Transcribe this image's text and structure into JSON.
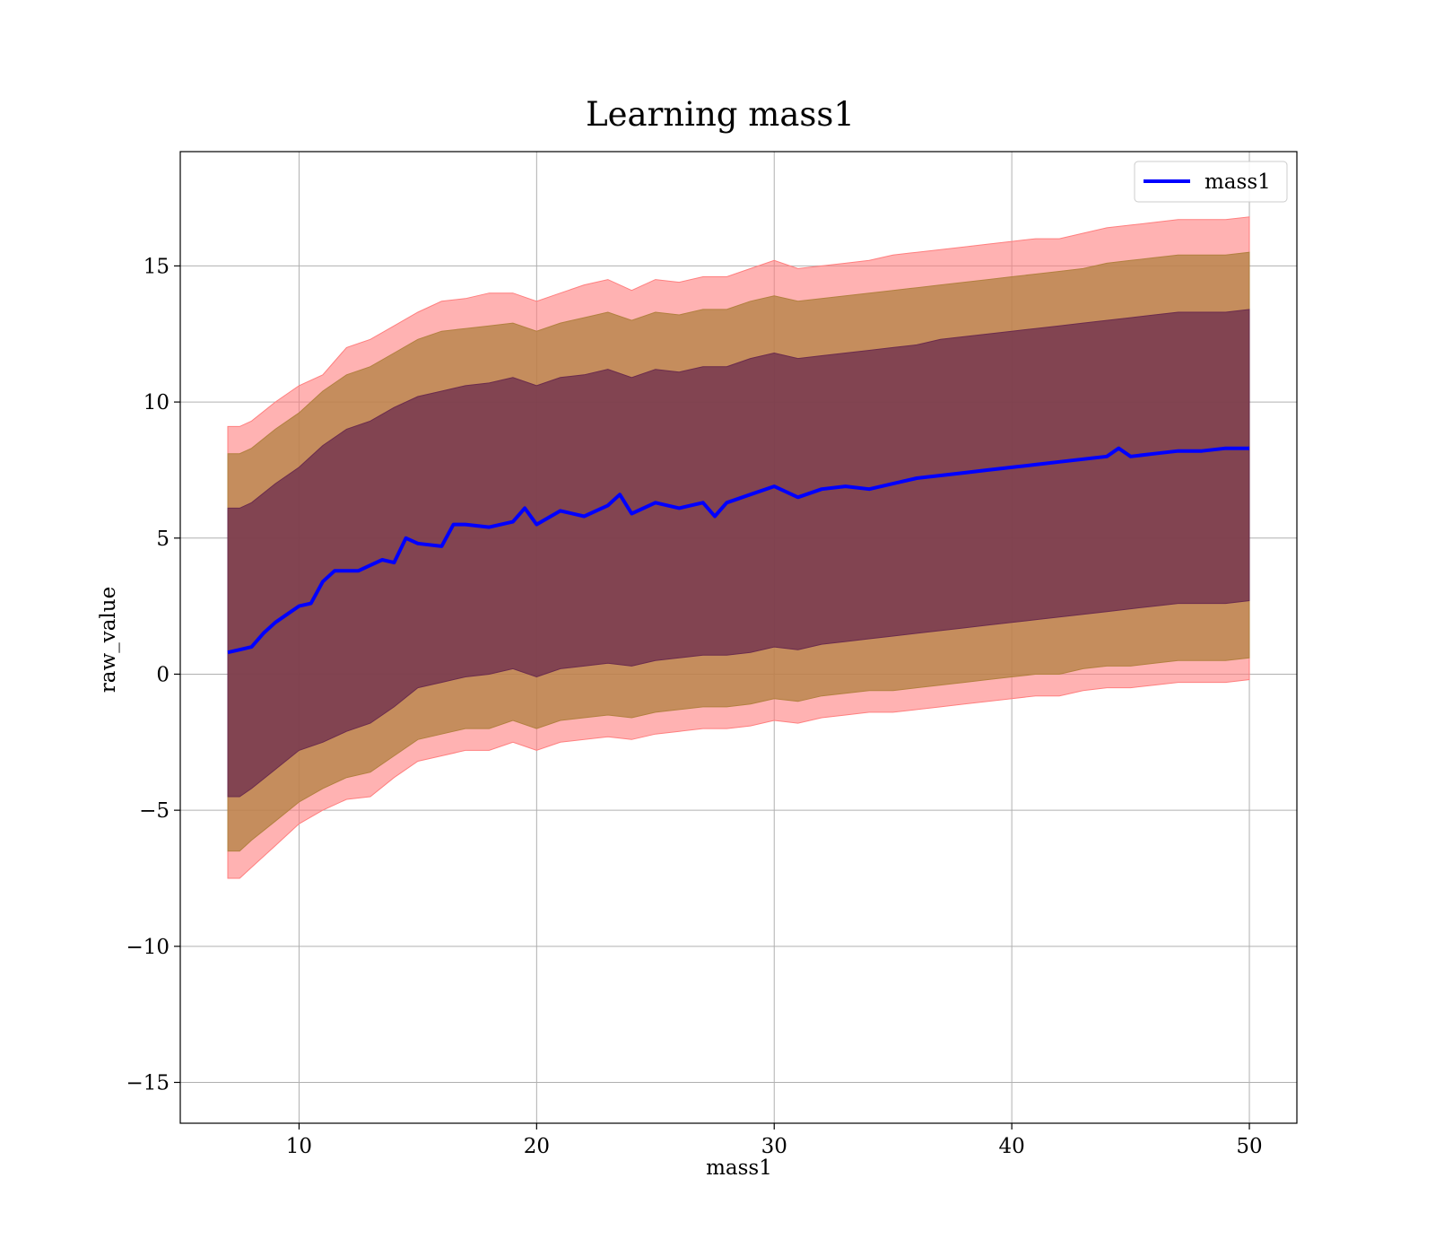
{
  "chart_data": {
    "type": "line",
    "title": "Learning mass1",
    "xlabel": "mass1",
    "ylabel": "raw_value",
    "xlim": [
      5,
      52
    ],
    "ylim": [
      -16.5,
      19.2
    ],
    "xticks": [
      10,
      20,
      30,
      40,
      50
    ],
    "yticks": [
      -15,
      -10,
      -5,
      0,
      5,
      10,
      15
    ],
    "xtick_labels": [
      "10",
      "20",
      "30",
      "40",
      "50"
    ],
    "ytick_labels": [
      "−15",
      "−10",
      "−5",
      "0",
      "5",
      "10",
      "15"
    ],
    "grid": true,
    "legend_position": "top-right",
    "series": [
      {
        "name": "mass1",
        "color": "#0000ff",
        "x": [
          7,
          7.5,
          8,
          8.5,
          9,
          9.5,
          10,
          10.5,
          11,
          11.5,
          12,
          12.5,
          13,
          13.5,
          14,
          14.5,
          15,
          16,
          16.5,
          17,
          18,
          19,
          19.5,
          20,
          21,
          22,
          23,
          23.5,
          24,
          25,
          26,
          27,
          27.5,
          28,
          29,
          30,
          31,
          32,
          33,
          34,
          35,
          36,
          37,
          38,
          39,
          40,
          41,
          42,
          43,
          44,
          44.5,
          45,
          46,
          47,
          48,
          49,
          50
        ],
        "values": [
          0.8,
          0.9,
          1.0,
          1.5,
          1.9,
          2.2,
          2.5,
          2.6,
          3.4,
          3.8,
          3.8,
          3.8,
          4.0,
          4.2,
          4.1,
          5.0,
          4.8,
          4.7,
          5.5,
          5.5,
          5.4,
          5.6,
          6.1,
          5.5,
          6.0,
          5.8,
          6.2,
          6.6,
          5.9,
          6.3,
          6.1,
          6.3,
          5.8,
          6.3,
          6.6,
          6.9,
          6.5,
          6.8,
          6.9,
          6.8,
          7.0,
          7.2,
          7.3,
          7.4,
          7.5,
          7.6,
          7.7,
          7.8,
          7.9,
          8.0,
          8.3,
          8.0,
          8.1,
          8.2,
          8.2,
          8.3,
          8.3
        ]
      }
    ],
    "bands": [
      {
        "color": "#ff7f7f",
        "x": [
          7,
          7.5,
          8,
          9,
          10,
          11,
          12,
          13,
          14,
          15,
          16,
          17,
          18,
          19,
          20,
          21,
          22,
          23,
          24,
          25,
          26,
          27,
          28,
          29,
          30,
          31,
          32,
          33,
          34,
          35,
          36,
          37,
          38,
          39,
          40,
          41,
          42,
          43,
          44,
          45,
          46,
          47,
          48,
          49,
          50
        ],
        "upper": [
          9.1,
          9.1,
          9.3,
          10.0,
          10.6,
          11.0,
          12.0,
          12.3,
          12.8,
          13.3,
          13.7,
          13.8,
          14.0,
          14.0,
          13.7,
          14.0,
          14.3,
          14.5,
          14.1,
          14.5,
          14.4,
          14.6,
          14.6,
          14.9,
          15.2,
          14.9,
          15.0,
          15.1,
          15.2,
          15.4,
          15.5,
          15.6,
          15.7,
          15.8,
          15.9,
          16.0,
          16.0,
          16.2,
          16.4,
          16.5,
          16.6,
          16.7,
          16.7,
          16.7,
          16.8
        ],
        "lower": [
          -7.5,
          -7.5,
          -7.1,
          -6.3,
          -5.5,
          -5.0,
          -4.6,
          -4.5,
          -3.8,
          -3.2,
          -3.0,
          -2.8,
          -2.8,
          -2.5,
          -2.8,
          -2.5,
          -2.4,
          -2.3,
          -2.4,
          -2.2,
          -2.1,
          -2.0,
          -2.0,
          -1.9,
          -1.7,
          -1.8,
          -1.6,
          -1.5,
          -1.4,
          -1.4,
          -1.3,
          -1.2,
          -1.1,
          -1.0,
          -0.9,
          -0.8,
          -0.8,
          -0.6,
          -0.5,
          -0.5,
          -0.4,
          -0.3,
          -0.3,
          -0.3,
          -0.2
        ]
      },
      {
        "color": "#b28040",
        "x": [
          7,
          7.5,
          8,
          9,
          10,
          11,
          12,
          13,
          14,
          15,
          16,
          17,
          18,
          19,
          20,
          21,
          22,
          23,
          24,
          25,
          26,
          27,
          28,
          29,
          30,
          31,
          32,
          33,
          34,
          35,
          36,
          37,
          38,
          39,
          40,
          41,
          42,
          43,
          44,
          45,
          46,
          47,
          48,
          49,
          50
        ],
        "upper": [
          8.1,
          8.1,
          8.3,
          9.0,
          9.6,
          10.4,
          11.0,
          11.3,
          11.8,
          12.3,
          12.6,
          12.7,
          12.8,
          12.9,
          12.6,
          12.9,
          13.1,
          13.3,
          13.0,
          13.3,
          13.2,
          13.4,
          13.4,
          13.7,
          13.9,
          13.7,
          13.8,
          13.9,
          14.0,
          14.1,
          14.2,
          14.3,
          14.4,
          14.5,
          14.6,
          14.7,
          14.8,
          14.9,
          15.1,
          15.2,
          15.3,
          15.4,
          15.4,
          15.4,
          15.5
        ],
        "lower": [
          -6.5,
          -6.5,
          -6.1,
          -5.4,
          -4.7,
          -4.2,
          -3.8,
          -3.6,
          -3.0,
          -2.4,
          -2.2,
          -2.0,
          -2.0,
          -1.7,
          -2.0,
          -1.7,
          -1.6,
          -1.5,
          -1.6,
          -1.4,
          -1.3,
          -1.2,
          -1.2,
          -1.1,
          -0.9,
          -1.0,
          -0.8,
          -0.7,
          -0.6,
          -0.6,
          -0.5,
          -0.4,
          -0.3,
          -0.2,
          -0.1,
          0.0,
          0.0,
          0.2,
          0.3,
          0.3,
          0.4,
          0.5,
          0.5,
          0.5,
          0.6
        ]
      },
      {
        "color": "#6b2c4d",
        "x": [
          7,
          7.5,
          8,
          9,
          10,
          11,
          12,
          13,
          14,
          15,
          16,
          17,
          18,
          19,
          20,
          21,
          22,
          23,
          24,
          25,
          26,
          27,
          28,
          29,
          30,
          31,
          32,
          33,
          34,
          35,
          36,
          37,
          38,
          39,
          40,
          41,
          42,
          43,
          44,
          45,
          46,
          47,
          48,
          49,
          50
        ],
        "upper": [
          6.1,
          6.1,
          6.3,
          7.0,
          7.6,
          8.4,
          9.0,
          9.3,
          9.8,
          10.2,
          10.4,
          10.6,
          10.7,
          10.9,
          10.6,
          10.9,
          11.0,
          11.2,
          10.9,
          11.2,
          11.1,
          11.3,
          11.3,
          11.6,
          11.8,
          11.6,
          11.7,
          11.8,
          11.9,
          12.0,
          12.1,
          12.3,
          12.4,
          12.5,
          12.6,
          12.7,
          12.8,
          12.9,
          13.0,
          13.1,
          13.2,
          13.3,
          13.3,
          13.3,
          13.4
        ],
        "lower": [
          -4.5,
          -4.5,
          -4.2,
          -3.5,
          -2.8,
          -2.5,
          -2.1,
          -1.8,
          -1.2,
          -0.5,
          -0.3,
          -0.1,
          0.0,
          0.2,
          -0.1,
          0.2,
          0.3,
          0.4,
          0.3,
          0.5,
          0.6,
          0.7,
          0.7,
          0.8,
          1.0,
          0.9,
          1.1,
          1.2,
          1.3,
          1.4,
          1.5,
          1.6,
          1.7,
          1.8,
          1.9,
          2.0,
          2.1,
          2.2,
          2.3,
          2.4,
          2.5,
          2.6,
          2.6,
          2.6,
          2.7
        ]
      }
    ]
  }
}
